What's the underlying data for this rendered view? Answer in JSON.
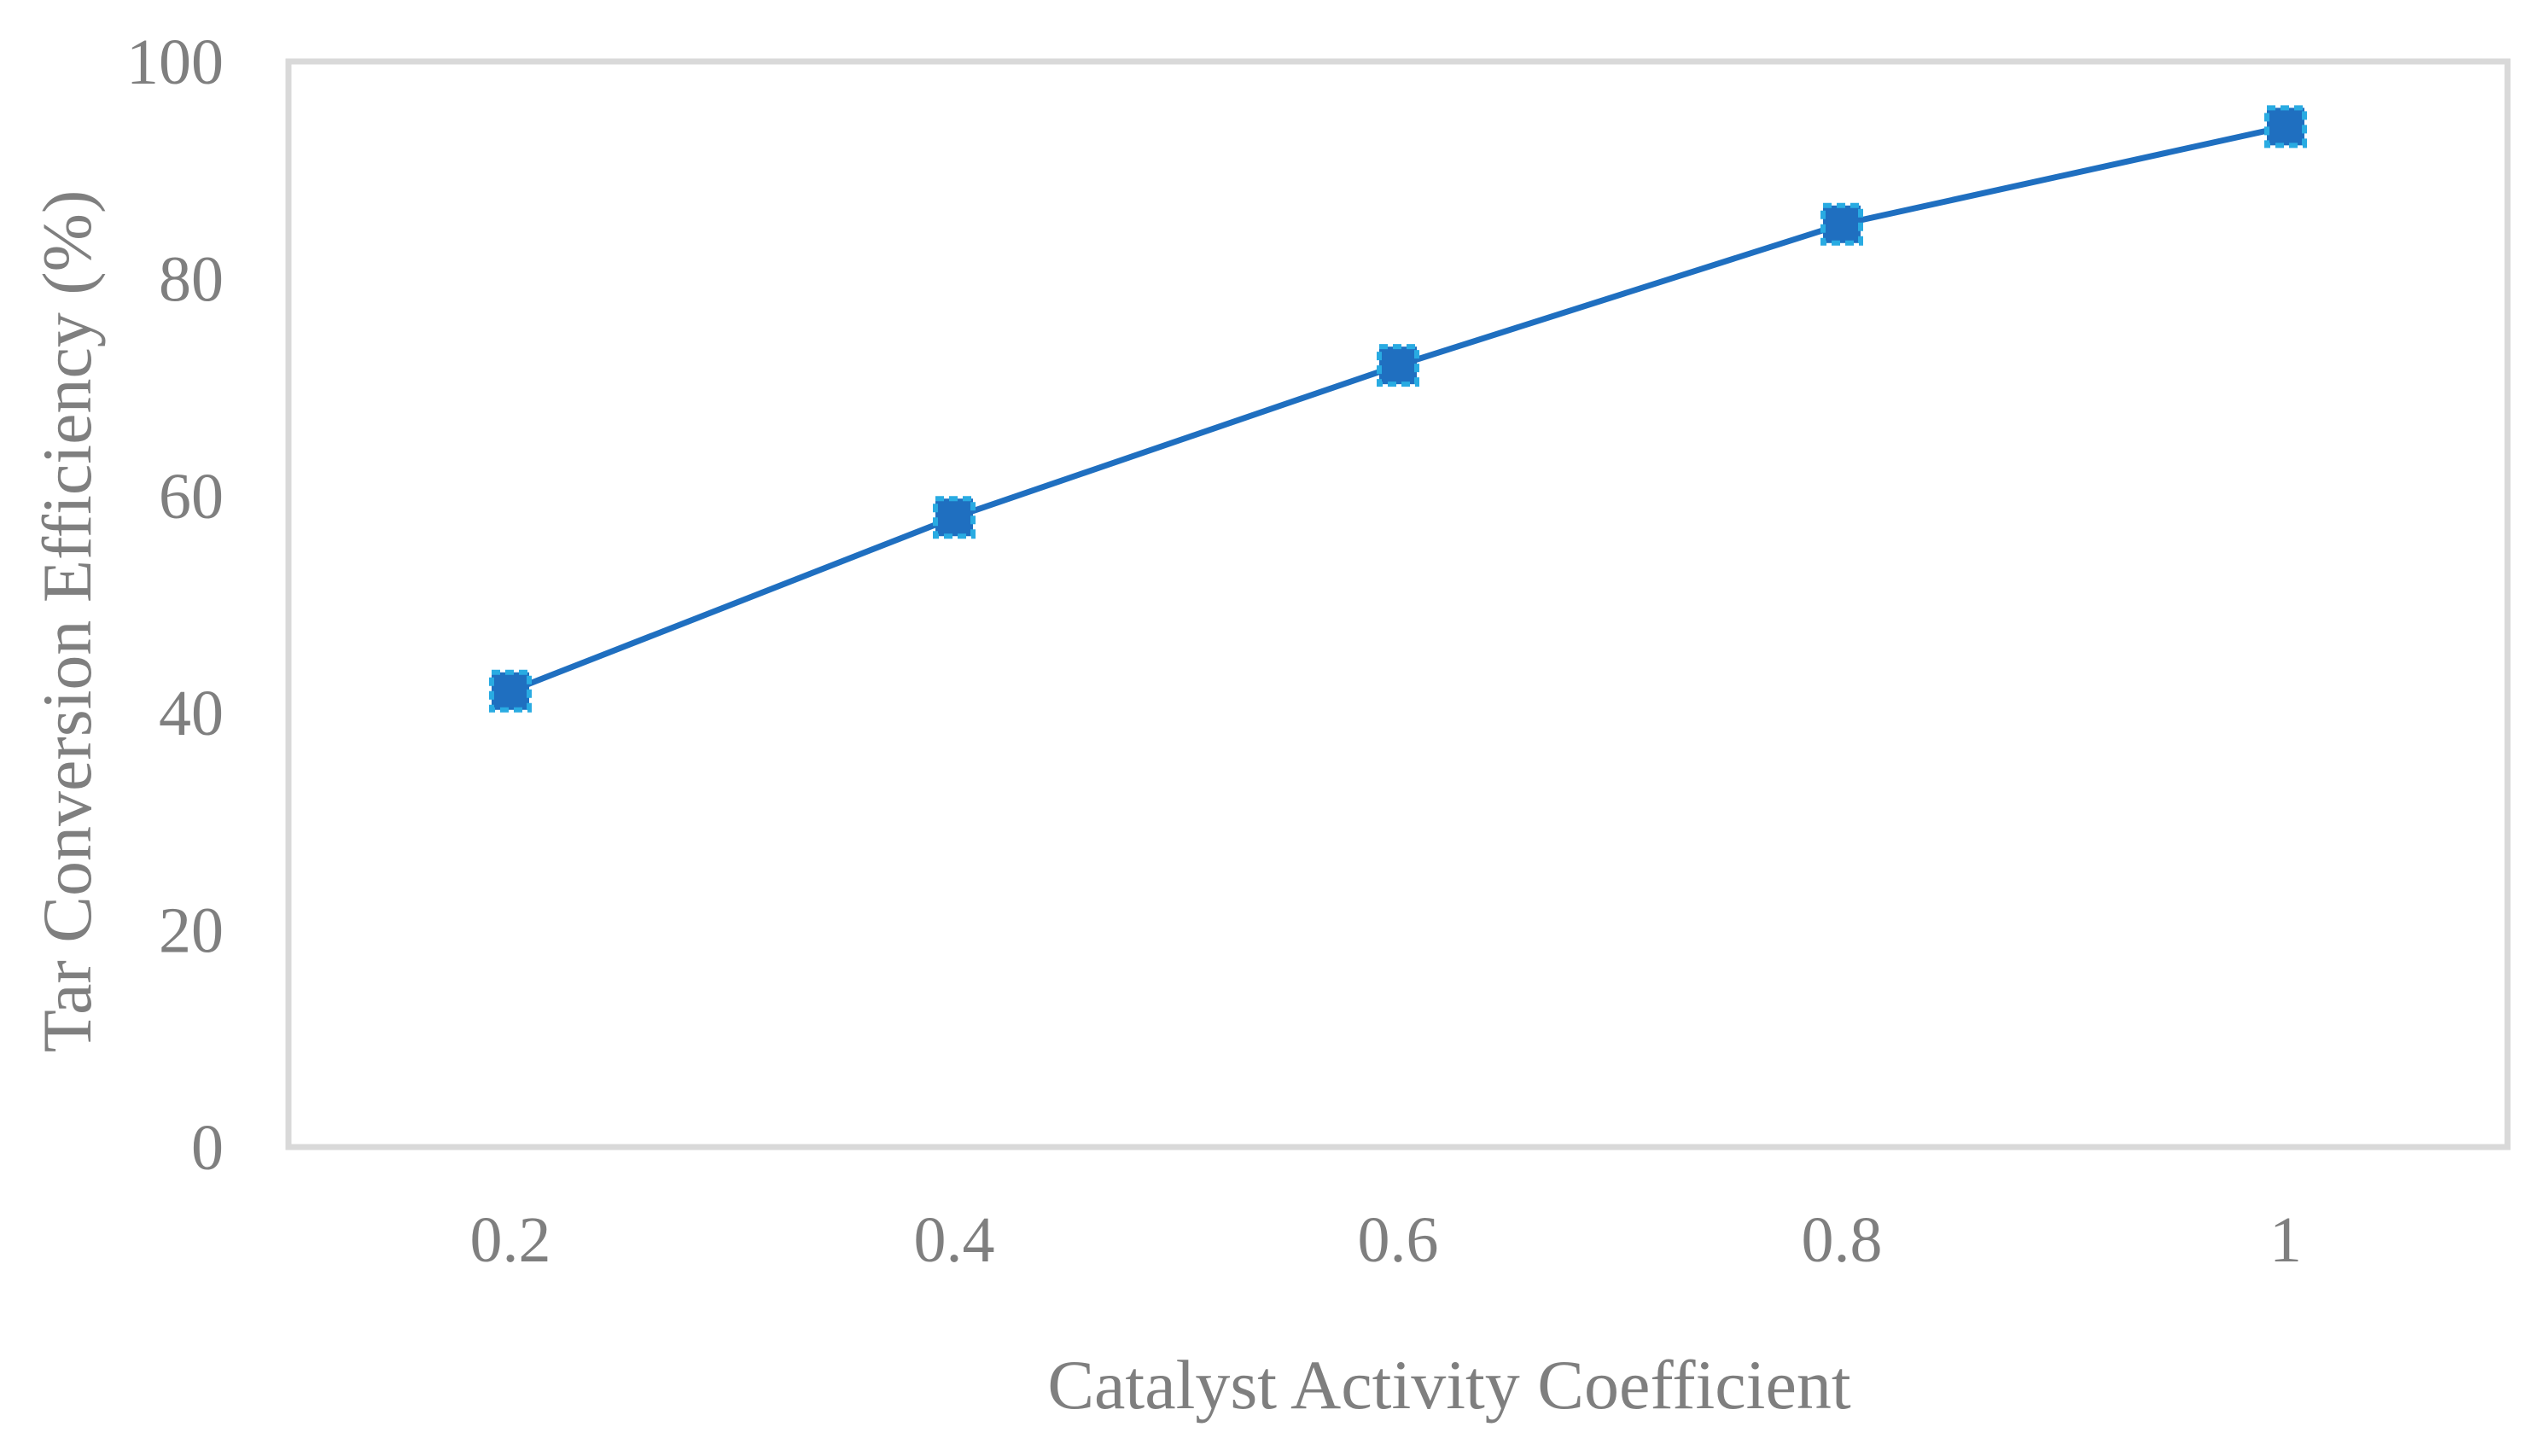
{
  "chart_data": {
    "type": "line",
    "title": "",
    "xlabel": "Catalyst Activity Coefficient",
    "ylabel": "Tar Conversion Efficiency (%)",
    "x_ticks": [
      "0.2",
      "0.4",
      "0.6",
      "0.8",
      "1"
    ],
    "y_ticks": [
      "0",
      "20",
      "40",
      "60",
      "80",
      "100"
    ],
    "xlim": [
      0.1,
      1.1
    ],
    "ylim": [
      0,
      100
    ],
    "grid": false,
    "legend": "none",
    "series": [
      {
        "x": [
          0.2,
          0.4,
          0.6,
          0.8,
          1.0
        ],
        "y": [
          42,
          58,
          72,
          85,
          94
        ],
        "line_color": "#1f6fc0",
        "marker": "square",
        "marker_fill": "#1f6fc0",
        "marker_edge": "#29abe2"
      }
    ],
    "frame_color": "#d9d9d9"
  }
}
